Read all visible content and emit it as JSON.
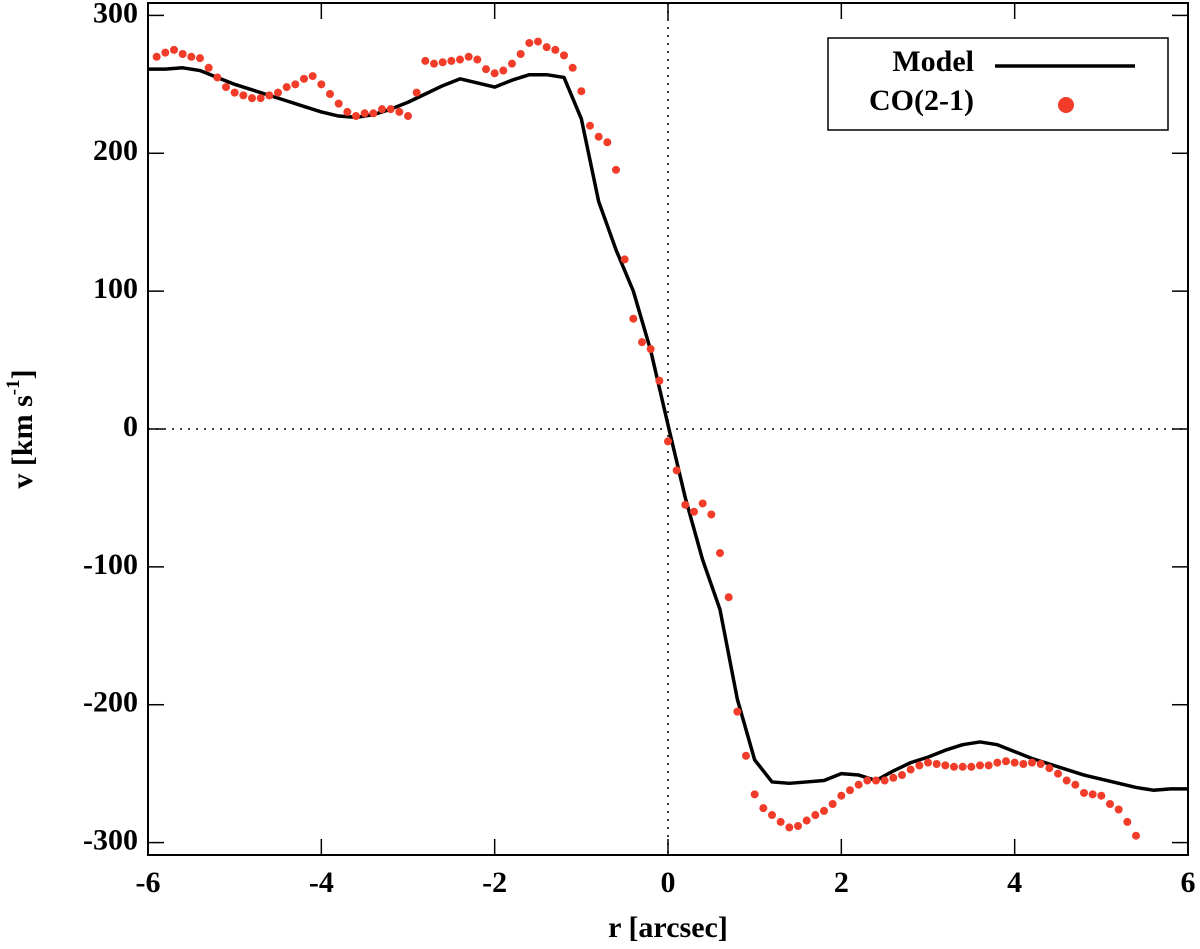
{
  "chart_data": {
    "type": "line",
    "xlabel": "r [arcsec]",
    "ylabel": [
      "v [km s",
      "-1",
      "]"
    ],
    "xlim": [
      -6,
      6
    ],
    "ylim": [
      -309,
      309
    ],
    "xticks": [
      -6,
      -4,
      -2,
      0,
      2,
      4,
      6
    ],
    "yticks": [
      -300,
      -200,
      -100,
      0,
      100,
      200,
      300
    ],
    "zero_lines": true,
    "legend": "upper right",
    "series": [
      {
        "name": "Model",
        "color": "#000000",
        "style": "line",
        "x": [
          -6,
          -5.8,
          -5.6,
          -5.4,
          -5.2,
          -5,
          -4.8,
          -4.6,
          -4.4,
          -4.2,
          -4,
          -3.8,
          -3.6,
          -3.4,
          -3.2,
          -3,
          -2.8,
          -2.6,
          -2.4,
          -2.2,
          -2,
          -1.8,
          -1.6,
          -1.4,
          -1.2,
          -1,
          -0.8,
          -0.6,
          -0.4,
          -0.2,
          0,
          0.2,
          0.4,
          0.6,
          0.8,
          1,
          1.2,
          1.4,
          1.6,
          1.8,
          2,
          2.2,
          2.4,
          2.6,
          2.8,
          3,
          3.2,
          3.4,
          3.6,
          3.8,
          4,
          4.2,
          4.4,
          4.6,
          4.8,
          5,
          5.2,
          5.4,
          5.6,
          5.8,
          6
        ],
        "values": [
          261,
          261,
          262,
          260,
          255,
          250,
          246,
          242,
          238,
          234,
          230,
          227,
          226,
          228,
          232,
          237,
          243,
          249,
          254,
          251,
          248,
          253,
          257,
          257,
          255,
          225,
          165,
          130,
          100,
          57,
          3,
          -50,
          -95,
          -131,
          -196,
          -240,
          -256,
          -257,
          -256,
          -255,
          -250,
          -251,
          -255,
          -248,
          -242,
          -238,
          -233,
          -229,
          -227,
          -229,
          -234,
          -239,
          -243,
          -247,
          -251,
          -254,
          -257,
          -260,
          -262,
          -261,
          -261
        ]
      },
      {
        "name": "CO(2-1)",
        "color": "#f03c28",
        "style": "points",
        "x": [
          -5.9,
          -5.8,
          -5.7,
          -5.6,
          -5.5,
          -5.4,
          -5.3,
          -5.2,
          -5.1,
          -5,
          -4.9,
          -4.8,
          -4.7,
          -4.6,
          -4.5,
          -4.4,
          -4.3,
          -4.2,
          -4.1,
          -4,
          -3.9,
          -3.8,
          -3.7,
          -3.6,
          -3.5,
          -3.4,
          -3.3,
          -3.2,
          -3.1,
          -3,
          -2.9,
          -2.8,
          -2.7,
          -2.6,
          -2.5,
          -2.4,
          -2.3,
          -2.2,
          -2.1,
          -2,
          -1.9,
          -1.8,
          -1.7,
          -1.6,
          -1.5,
          -1.4,
          -1.3,
          -1.2,
          -1.1,
          -1,
          -0.9,
          -0.8,
          -0.7,
          -0.6,
          -0.5,
          -0.4,
          -0.3,
          -0.2,
          -0.1,
          0,
          0.1,
          0.2,
          0.3,
          0.4,
          0.5,
          0.6,
          0.7,
          0.8,
          0.9,
          1,
          1.1,
          1.2,
          1.3,
          1.4,
          1.5,
          1.6,
          1.7,
          1.8,
          1.9,
          2,
          2.1,
          2.2,
          2.3,
          2.4,
          2.5,
          2.6,
          2.7,
          2.8,
          2.9,
          3,
          3.1,
          3.2,
          3.3,
          3.4,
          3.5,
          3.6,
          3.7,
          3.8,
          3.9,
          4,
          4.1,
          4.2,
          4.3,
          4.4,
          4.5,
          4.6,
          4.7,
          4.8,
          4.9,
          5,
          5.1,
          5.2,
          5.3,
          5.4
        ],
        "values": [
          270,
          273,
          275,
          272,
          270,
          269,
          262,
          255,
          248,
          244,
          242,
          240,
          240,
          242,
          244,
          248,
          250,
          254,
          256,
          250,
          243,
          236,
          230,
          227,
          229,
          229,
          232,
          232,
          230,
          227,
          244,
          267,
          265,
          266,
          267,
          268,
          270,
          268,
          261,
          258,
          260,
          265,
          272,
          280,
          281,
          277,
          275,
          271,
          262,
          245,
          220,
          212,
          208,
          188,
          123,
          80,
          63,
          58,
          35,
          -9,
          -30,
          -55,
          -60,
          -54,
          -62,
          -90,
          -122,
          -205,
          -237,
          -265,
          -275,
          -280,
          -285,
          -289,
          -288,
          -284,
          -280,
          -277,
          -272,
          -266,
          -262,
          -258,
          -255,
          -255,
          -255,
          -253,
          -251,
          -247,
          -244,
          -242,
          -243,
          -244,
          -245,
          -245,
          -245,
          -244,
          -244,
          -242,
          -241,
          -242,
          -243,
          -242,
          -243,
          -246,
          -250,
          -255,
          -258,
          -264,
          -265,
          -266,
          -272,
          -276,
          -285,
          -295
        ]
      }
    ]
  }
}
